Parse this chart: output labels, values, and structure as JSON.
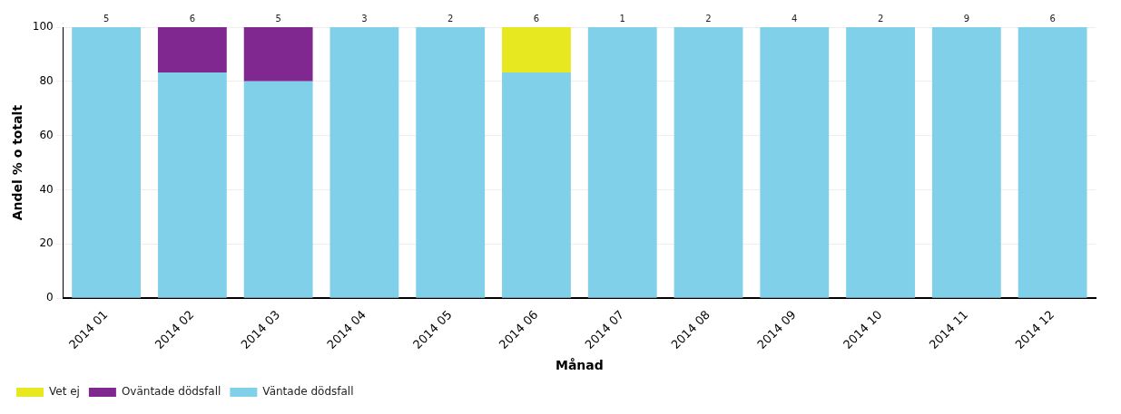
{
  "chart_data": {
    "type": "bar",
    "stacked": true,
    "xlabel": "Månad",
    "ylabel": "Andel % o totalt",
    "categories": [
      "2014 01",
      "2014 02",
      "2014 03",
      "2014 04",
      "2014 05",
      "2014 06",
      "2014 07",
      "2014 08",
      "2014 09",
      "2014 10",
      "2014 11",
      "2014 12"
    ],
    "series": [
      {
        "name": "Väntade dödsfall",
        "color": "#7fd0e8",
        "values": [
          100,
          83.3,
          80,
          100,
          100,
          83.3,
          100,
          100,
          100,
          100,
          100,
          100
        ]
      },
      {
        "name": "Oväntade dödsfall",
        "color": "#802890",
        "values": [
          0,
          16.7,
          20,
          0,
          0,
          0,
          0,
          0,
          0,
          0,
          0,
          0
        ]
      },
      {
        "name": "Vet ej",
        "color": "#e8e820",
        "values": [
          0,
          0,
          0,
          0,
          0,
          16.7,
          0,
          0,
          0,
          0,
          0,
          0
        ]
      }
    ],
    "annotations": [
      {
        "text": "5",
        "x": "2014 01",
        "y": 100
      },
      {
        "text": "6",
        "x": "2014 02",
        "y": 100
      },
      {
        "text": "5",
        "x": "2014 03",
        "y": 100
      },
      {
        "text": "3",
        "x": "2014 04",
        "y": 100
      },
      {
        "text": "2",
        "x": "2014 05",
        "y": 100
      },
      {
        "text": "6",
        "x": "2014 06",
        "y": 100
      },
      {
        "text": "1",
        "x": "2014 07",
        "y": 100
      },
      {
        "text": "2",
        "x": "2014 08",
        "y": 100
      },
      {
        "text": "4",
        "x": "2014 09",
        "y": 100
      },
      {
        "text": "2",
        "x": "2014 10",
        "y": 100
      },
      {
        "text": "9",
        "x": "2014 11",
        "y": 100
      },
      {
        "text": "6",
        "x": "2014 12",
        "y": 100
      }
    ],
    "ylim": [
      0,
      100
    ],
    "yticks": [
      0,
      20,
      40,
      60,
      80,
      100
    ],
    "grid": "y",
    "legend": "bottom left"
  }
}
